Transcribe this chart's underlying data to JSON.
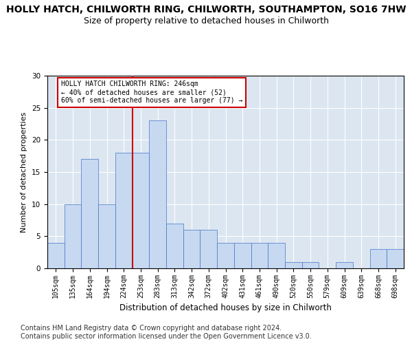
{
  "title1": "HOLLY HATCH, CHILWORTH RING, CHILWORTH, SOUTHAMPTON, SO16 7HW",
  "title2": "Size of property relative to detached houses in Chilworth",
  "xlabel": "Distribution of detached houses by size in Chilworth",
  "ylabel": "Number of detached properties",
  "categories": [
    "105sqm",
    "135sqm",
    "164sqm",
    "194sqm",
    "224sqm",
    "253sqm",
    "283sqm",
    "313sqm",
    "342sqm",
    "372sqm",
    "402sqm",
    "431sqm",
    "461sqm",
    "490sqm",
    "520sqm",
    "550sqm",
    "579sqm",
    "609sqm",
    "639sqm",
    "668sqm",
    "698sqm"
  ],
  "values": [
    4,
    10,
    17,
    10,
    18,
    18,
    23,
    7,
    6,
    6,
    4,
    4,
    4,
    4,
    1,
    1,
    0,
    1,
    0,
    3,
    3
  ],
  "bar_color": "#c6d9f1",
  "bar_edge_color": "#4472c4",
  "vline_color": "#cc0000",
  "vline_x": 4.5,
  "annotation_text": "HOLLY HATCH CHILWORTH RING: 246sqm\n← 40% of detached houses are smaller (52)\n60% of semi-detached houses are larger (77) →",
  "annotation_box_color": "#ffffff",
  "annotation_box_edge": "#cc0000",
  "footer1": "Contains HM Land Registry data © Crown copyright and database right 2024.",
  "footer2": "Contains public sector information licensed under the Open Government Licence v3.0.",
  "ylim": [
    0,
    30
  ],
  "yticks": [
    0,
    5,
    10,
    15,
    20,
    25,
    30
  ],
  "bg_color": "#dce6f1",
  "fig_bg_color": "#ffffff",
  "title1_fontsize": 10,
  "title2_fontsize": 9,
  "xlabel_fontsize": 8.5,
  "ylabel_fontsize": 8,
  "footer_fontsize": 7,
  "tick_fontsize": 7,
  "ytick_fontsize": 7.5
}
